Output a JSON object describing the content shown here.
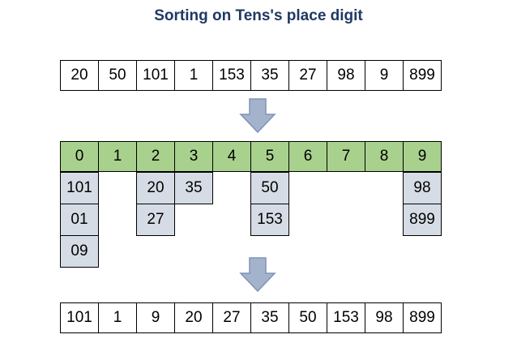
{
  "title": "Sorting on Tens's place digit",
  "input_row": [
    "20",
    "50",
    "101",
    "1",
    "153",
    "35",
    "27",
    "98",
    "9",
    "899"
  ],
  "bucket_headers": [
    "0",
    "1",
    "2",
    "3",
    "4",
    "5",
    "6",
    "7",
    "8",
    "9"
  ],
  "buckets": [
    [
      "101",
      "01",
      "09"
    ],
    [],
    [
      "20",
      "27"
    ],
    [
      "35"
    ],
    [],
    [
      "50",
      "153"
    ],
    [],
    [],
    [],
    [
      "98",
      "899"
    ]
  ],
  "output_row": [
    "101",
    "1",
    "9",
    "20",
    "27",
    "35",
    "50",
    "153",
    "98",
    "899"
  ],
  "colors": {
    "title": "#1f3864",
    "header_fill": "#a9d18e",
    "bucket_fill": "#d6dce5",
    "arrow_fill": "#a3b3cc",
    "arrow_stroke": "#7f94b5"
  }
}
